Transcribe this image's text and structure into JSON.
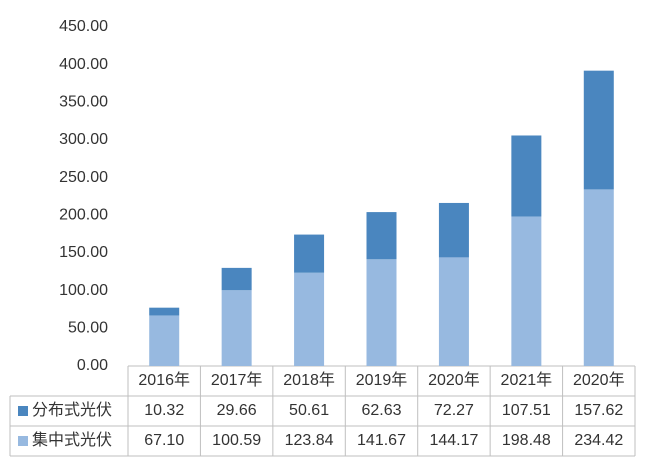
{
  "chart_data": {
    "type": "stacked-bar-table",
    "categories": [
      "2016年",
      "2017年",
      "2018年",
      "2019年",
      "2020年",
      "2021年",
      "2020年"
    ],
    "series": [
      {
        "name": "分布式光伏",
        "color": "#4a86bf",
        "values": [
          10.32,
          29.66,
          50.61,
          62.63,
          72.27,
          107.51,
          157.62
        ],
        "value_labels": [
          "10.32",
          "29.66",
          "50.61",
          "62.63",
          "72.27",
          "107.51",
          "157.62"
        ]
      },
      {
        "name": "集中式光伏",
        "color": "#97b9e0",
        "values": [
          67.1,
          100.59,
          123.84,
          141.67,
          144.17,
          198.48,
          234.42
        ],
        "value_labels": [
          "67.10",
          "100.59",
          "123.84",
          "141.67",
          "144.17",
          "198.48",
          "234.42"
        ]
      }
    ],
    "ylim": [
      0,
      450
    ],
    "yticks": [
      {
        "value": 0,
        "label": "0.00"
      },
      {
        "value": 50,
        "label": "50.00"
      },
      {
        "value": 100,
        "label": "100.00"
      },
      {
        "value": 150,
        "label": "150.00"
      },
      {
        "value": 200,
        "label": "200.00"
      },
      {
        "value": 250,
        "label": "250.00"
      },
      {
        "value": 300,
        "label": "300.00"
      },
      {
        "value": 350,
        "label": "350.00"
      },
      {
        "value": 400,
        "label": "400.00"
      },
      {
        "value": 450,
        "label": "450.00"
      }
    ],
    "grid": false
  }
}
